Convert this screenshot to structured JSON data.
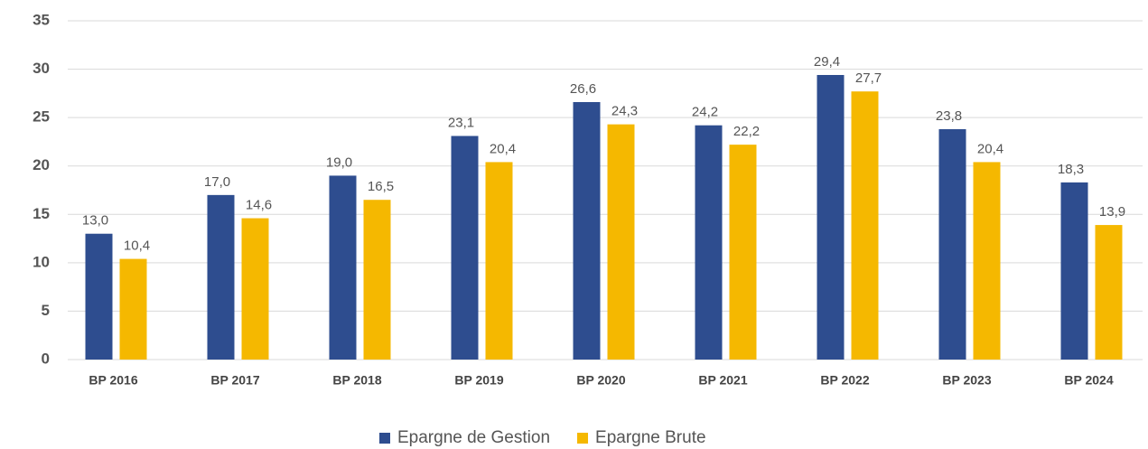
{
  "chart_data": {
    "type": "bar",
    "categories": [
      "BP 2016",
      "BP 2017",
      "BP 2018",
      "BP 2019",
      "BP 2020",
      "BP 2021",
      "BP 2022",
      "BP 2023",
      "BP 2024"
    ],
    "series": [
      {
        "name": "Epargne de Gestion",
        "color": "#2e4d8f",
        "values": [
          13.0,
          17.0,
          19.0,
          23.1,
          26.6,
          24.2,
          29.4,
          23.8,
          18.3
        ],
        "value_labels": [
          "13,0",
          "17,0",
          "19,0",
          "23,1",
          "26,6",
          "24,2",
          "29,4",
          "23,8",
          "18,3"
        ]
      },
      {
        "name": "Epargne Brute",
        "color": "#f5b800",
        "values": [
          10.4,
          14.6,
          16.5,
          20.4,
          24.3,
          22.2,
          27.7,
          20.4,
          13.9
        ],
        "value_labels": [
          "10,4",
          "14,6",
          "16,5",
          "20,4",
          "24,3",
          "22,2",
          "27,7",
          "20,4",
          "13,9"
        ]
      }
    ],
    "ylim": [
      0,
      35
    ],
    "yticks": [
      0,
      5,
      10,
      15,
      20,
      25,
      30,
      35
    ],
    "grid": true,
    "legend": "bottom"
  }
}
